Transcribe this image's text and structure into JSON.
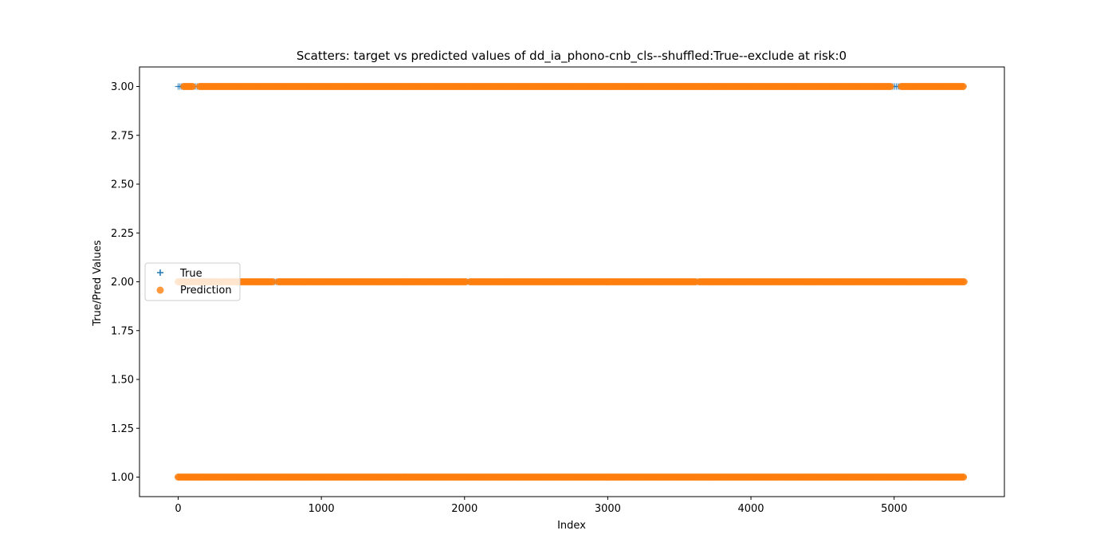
{
  "chart_data": {
    "type": "scatter",
    "title": "Scatters: target vs predicted values of dd_ia_phono-cnb_cls--shuffled:True--exclude at risk:0",
    "xlabel": "Index",
    "ylabel": "True/Pred Values",
    "xlim": [
      -270,
      5770
    ],
    "ylim": [
      0.9,
      3.1
    ],
    "xticks": [
      0,
      1000,
      2000,
      3000,
      4000,
      5000
    ],
    "xtick_labels": [
      "0",
      "1000",
      "2000",
      "3000",
      "4000",
      "5000"
    ],
    "yticks": [
      1.0,
      1.25,
      1.5,
      1.75,
      2.0,
      2.25,
      2.5,
      2.75,
      3.0
    ],
    "ytick_labels": [
      "1.00",
      "1.25",
      "1.50",
      "1.75",
      "2.00",
      "2.25",
      "2.50",
      "2.75",
      "3.00"
    ],
    "grid": false,
    "legend_position": "center-left",
    "series": [
      {
        "name": "True",
        "marker": "plus",
        "color": "#1f77b4",
        "y_levels": [
          1,
          2,
          3
        ],
        "x_range": [
          0,
          5490
        ]
      },
      {
        "name": "Prediction",
        "marker": "circle",
        "color": "#ff7f0e",
        "segments": [
          {
            "y": 1,
            "x_ranges": [
              [
                0,
                5490
              ]
            ]
          },
          {
            "y": 2,
            "x_ranges": [
              [
                0,
                670
              ],
              [
                700,
                2010
              ],
              [
                2040,
                3620
              ],
              [
                3640,
                5490
              ]
            ]
          },
          {
            "y": 3,
            "x_ranges": [
              [
                40,
                110
              ],
              [
                150,
                4980
              ],
              [
                5050,
                5490
              ]
            ]
          }
        ]
      }
    ]
  }
}
